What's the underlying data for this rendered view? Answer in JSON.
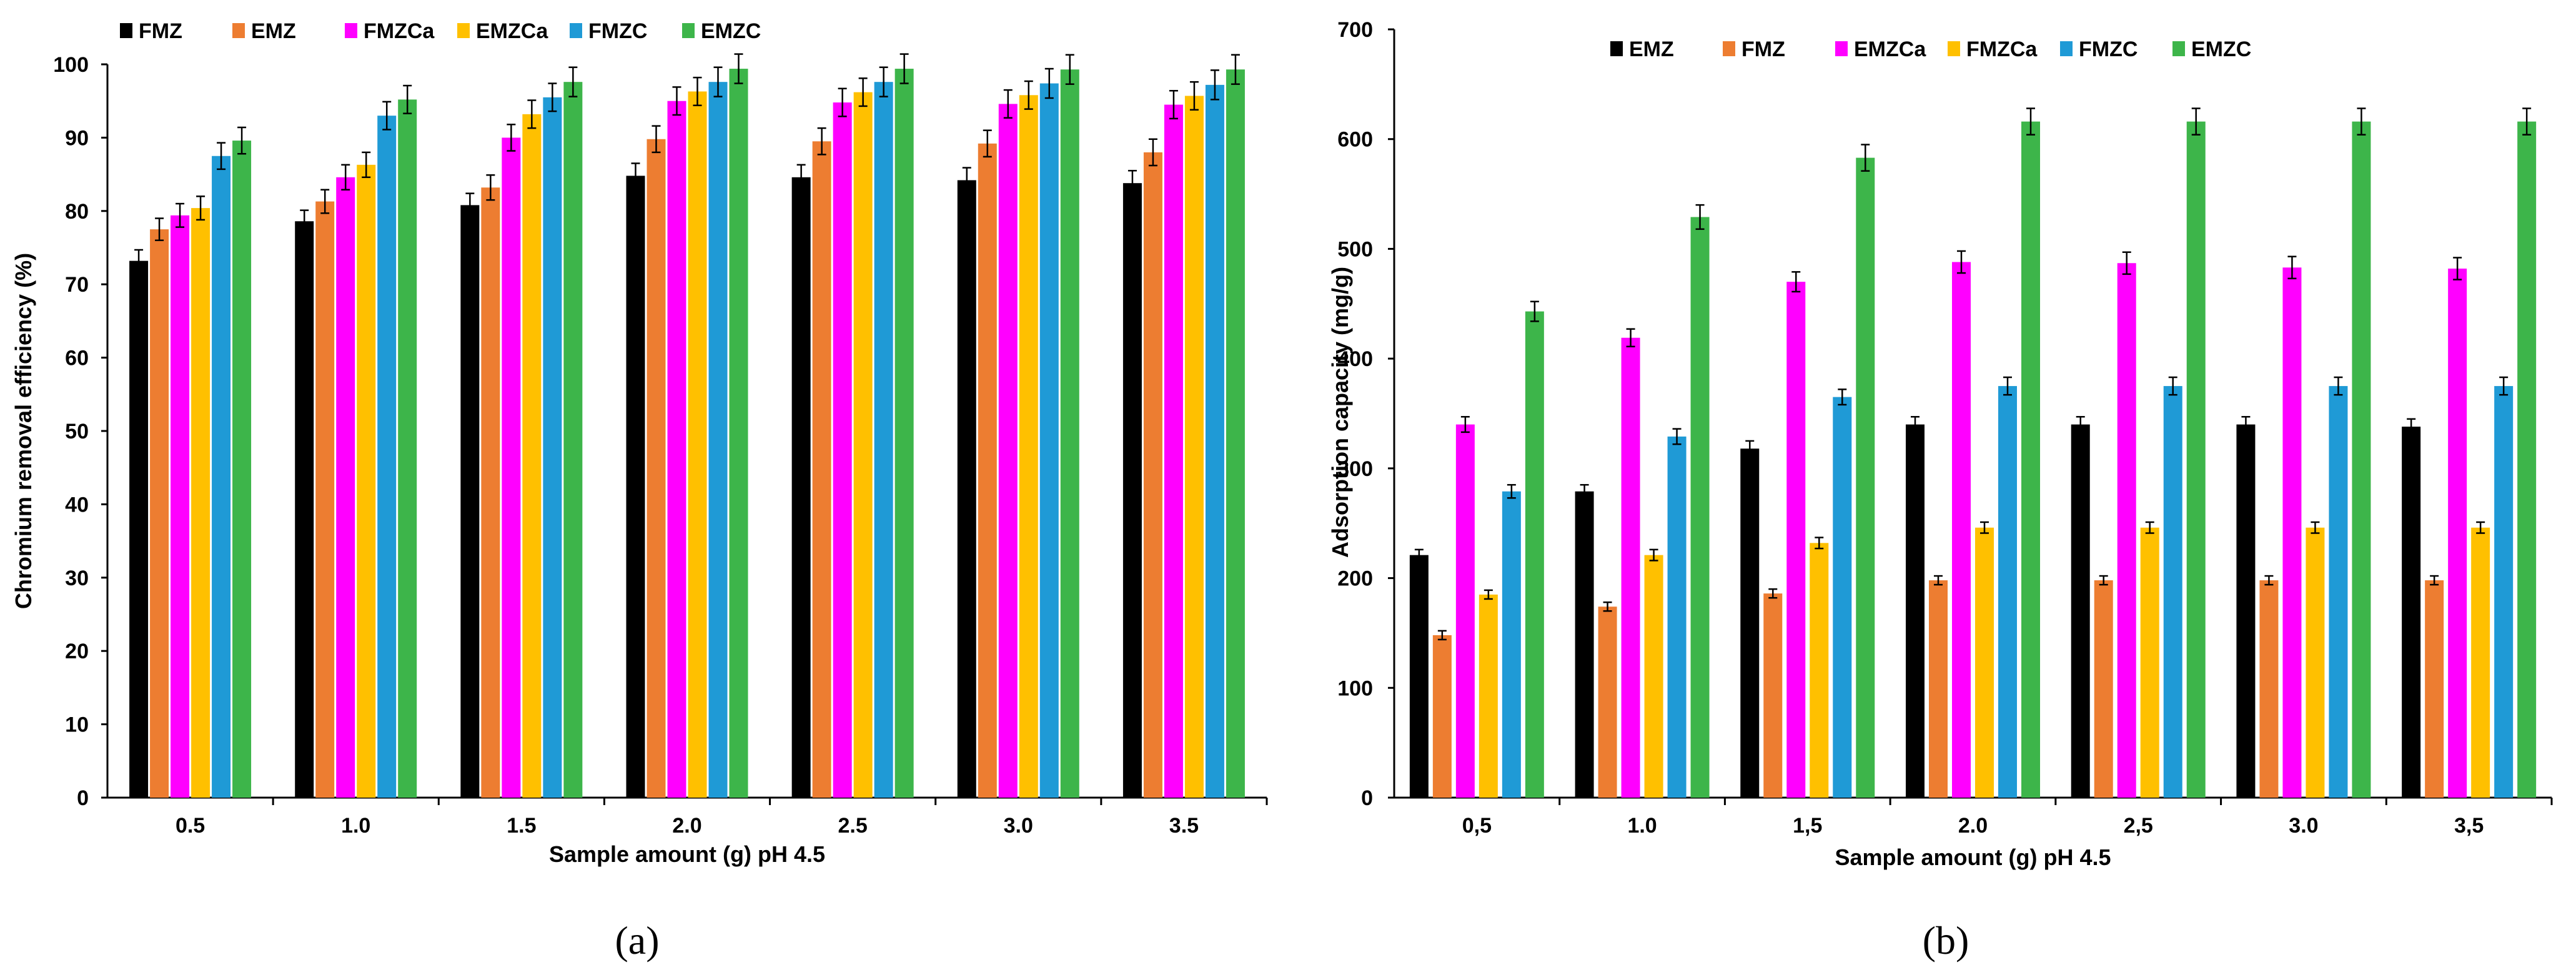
{
  "colors": {
    "black": "#000000",
    "orange": "#ED7D31",
    "magenta": "#FF00FF",
    "yellow": "#FFC000",
    "blue": "#1F9AD6",
    "green": "#3DB54A"
  },
  "chart_data": [
    {
      "id": "a",
      "type": "bar",
      "caption": "(a)",
      "title": "",
      "xlabel": "Sample amount (g) pH 4.5",
      "ylabel": "Chromium removal efficiency (%)",
      "ylim": [
        0,
        100
      ],
      "yticks": [
        "0",
        "10",
        "20",
        "30",
        "40",
        "50",
        "60",
        "70",
        "80",
        "90",
        "100"
      ],
      "legend_position": "top",
      "categories": [
        "0.5",
        "1.0",
        "1.5",
        "2.0",
        "2.5",
        "3.0",
        "3.5"
      ],
      "series": [
        {
          "name": "FMZ",
          "color": "#000000",
          "values": [
            73.2,
            78.6,
            80.8,
            84.8,
            84.6,
            84.2,
            83.8
          ],
          "errors": [
            1.5,
            1.5,
            1.6,
            1.7,
            1.7,
            1.7,
            1.7
          ]
        },
        {
          "name": "EMZ",
          "color": "#ED7D31",
          "values": [
            77.5,
            81.3,
            83.2,
            89.8,
            89.5,
            89.2,
            88.0
          ],
          "errors": [
            1.5,
            1.6,
            1.7,
            1.8,
            1.8,
            1.8,
            1.8
          ]
        },
        {
          "name": "FMZCa",
          "color": "#FF00FF",
          "values": [
            79.4,
            84.6,
            90.0,
            95.0,
            94.8,
            94.6,
            94.5
          ],
          "errors": [
            1.6,
            1.7,
            1.8,
            1.9,
            1.9,
            1.9,
            1.9
          ]
        },
        {
          "name": "EMZCa",
          "color": "#FFC000",
          "values": [
            80.4,
            86.3,
            93.2,
            96.3,
            96.2,
            95.8,
            95.7
          ],
          "errors": [
            1.6,
            1.7,
            1.9,
            1.9,
            1.9,
            1.9,
            1.9
          ]
        },
        {
          "name": "FMZC",
          "color": "#1F9AD6",
          "values": [
            87.5,
            93.0,
            95.5,
            97.6,
            97.6,
            97.4,
            97.2
          ],
          "errors": [
            1.8,
            1.9,
            1.9,
            2.0,
            2.0,
            2.0,
            2.0
          ]
        },
        {
          "name": "EMZC",
          "color": "#3DB54A",
          "values": [
            89.6,
            95.2,
            97.6,
            99.4,
            99.4,
            99.3,
            99.3
          ],
          "errors": [
            1.8,
            1.9,
            2.0,
            2.0,
            2.0,
            2.0,
            2.0
          ]
        }
      ]
    },
    {
      "id": "b",
      "type": "bar",
      "caption": "(b)",
      "title": "",
      "xlabel": "Sample amount (g) pH 4.5",
      "ylabel": "Adsorption capacity (mg/g)",
      "ylim": [
        0,
        700
      ],
      "yticks": [
        "0",
        "100",
        "200",
        "300",
        "400",
        "500",
        "600",
        "700"
      ],
      "legend_position": "top",
      "categories": [
        "0,5",
        "1.0",
        "1,5",
        "2.0",
        "2,5",
        "3.0",
        "3,5"
      ],
      "series": [
        {
          "name": "EMZ",
          "color": "#000000",
          "values": [
            221,
            279,
            318,
            340,
            340,
            340,
            338
          ],
          "errors": [
            5,
            6,
            7,
            7,
            7,
            7,
            7
          ]
        },
        {
          "name": "FMZ",
          "color": "#ED7D31",
          "values": [
            148,
            174,
            186,
            198,
            198,
            198,
            198
          ],
          "errors": [
            4,
            4,
            4,
            4,
            4,
            4,
            4
          ]
        },
        {
          "name": "EMZCa",
          "color": "#FF00FF",
          "values": [
            340,
            419,
            470,
            488,
            487,
            483,
            482
          ],
          "errors": [
            7,
            8,
            9,
            10,
            10,
            10,
            10
          ]
        },
        {
          "name": "FMZCa",
          "color": "#FFC000",
          "values": [
            185,
            221,
            232,
            246,
            246,
            246,
            246
          ],
          "errors": [
            4,
            5,
            5,
            5,
            5,
            5,
            5
          ]
        },
        {
          "name": "FMZC",
          "color": "#1F9AD6",
          "values": [
            279,
            329,
            365,
            375,
            375,
            375,
            375
          ],
          "errors": [
            6,
            7,
            7,
            8,
            8,
            8,
            8
          ]
        },
        {
          "name": "EMZC",
          "color": "#3DB54A",
          "values": [
            443,
            529,
            583,
            616,
            616,
            616,
            616
          ],
          "errors": [
            9,
            11,
            12,
            12,
            12,
            12,
            12
          ]
        }
      ]
    }
  ]
}
